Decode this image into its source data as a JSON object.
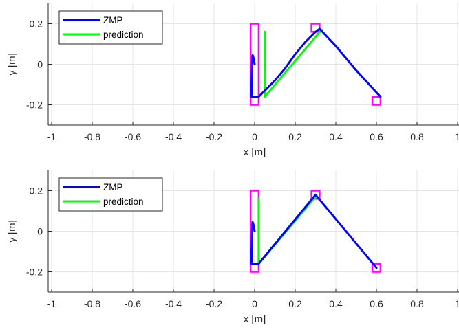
{
  "chart_data": [
    {
      "type": "line",
      "xlabel": "x [m]",
      "ylabel": "y [m]",
      "xlim": [
        -1,
        1
      ],
      "ylim": [
        -0.3,
        0.3
      ],
      "xticks": [
        -1,
        -0.8,
        -0.6,
        -0.4,
        -0.2,
        0,
        0.2,
        0.4,
        0.6,
        0.8,
        1
      ],
      "xtick_labels": [
        "-1",
        "-0.8",
        "-0.6",
        "-0.4",
        "-0.2",
        "0",
        "0.2",
        "0.4",
        "0.6",
        "0.8",
        "1"
      ],
      "yticks": [
        -0.2,
        0,
        0.2
      ],
      "ytick_labels": [
        "-0.2",
        "0",
        "0.2"
      ],
      "grid": true,
      "legend_position": "top-left",
      "series": [
        {
          "name": "ZMP",
          "color": "#0000ff",
          "x": [
            0.0,
            -0.005,
            -0.01,
            -0.012,
            -0.015,
            -0.015,
            0.02,
            0.05,
            0.1,
            0.15,
            0.2,
            0.25,
            0.3,
            0.32,
            0.4,
            0.5,
            0.62
          ],
          "y": [
            0.0,
            0.03,
            0.045,
            0.02,
            -0.1,
            -0.16,
            -0.16,
            -0.13,
            -0.08,
            -0.02,
            0.05,
            0.11,
            0.16,
            0.175,
            0.09,
            -0.03,
            -0.16
          ]
        },
        {
          "name": "prediction",
          "color": "#00ff00",
          "x": [
            0.05,
            0.05,
            0.33
          ],
          "y": [
            0.16,
            -0.16,
            0.17
          ]
        }
      ],
      "markers": {
        "color": "#ff00ff",
        "rects": [
          {
            "x0": -0.02,
            "x1": 0.02,
            "y0": -0.2,
            "y1": 0.2
          },
          {
            "x0": 0.28,
            "x1": 0.32,
            "y0": 0.16,
            "y1": 0.2
          },
          {
            "x0": 0.58,
            "x1": 0.62,
            "y0": -0.2,
            "y1": -0.16
          }
        ]
      }
    },
    {
      "type": "line",
      "xlabel": "x [m]",
      "ylabel": "y [m]",
      "xlim": [
        -1,
        1
      ],
      "ylim": [
        -0.3,
        0.3
      ],
      "xticks": [
        -1,
        -0.8,
        -0.6,
        -0.4,
        -0.2,
        0,
        0.2,
        0.4,
        0.6,
        0.8,
        1
      ],
      "xtick_labels": [
        "-1",
        "-0.8",
        "-0.6",
        "-0.4",
        "-0.2",
        "0",
        "0.2",
        "0.4",
        "0.6",
        "0.8",
        "1"
      ],
      "yticks": [
        -0.2,
        0,
        0.2
      ],
      "ytick_labels": [
        "-0.2",
        "0",
        "0.2"
      ],
      "grid": true,
      "legend_position": "top-left",
      "series": [
        {
          "name": "ZMP",
          "color": "#0000ff",
          "x": [
            0.0,
            -0.005,
            -0.01,
            -0.012,
            -0.015,
            -0.015,
            0.02,
            0.3,
            0.6
          ],
          "y": [
            0.0,
            0.03,
            0.045,
            0.02,
            -0.1,
            -0.16,
            -0.16,
            0.18,
            -0.18
          ]
        },
        {
          "name": "prediction",
          "color": "#00ff00",
          "x": [
            0.02,
            0.02,
            0.3
          ],
          "y": [
            0.16,
            -0.16,
            0.17
          ]
        }
      ],
      "markers": {
        "color": "#ff00ff",
        "rects": [
          {
            "x0": -0.02,
            "x1": 0.02,
            "y0": -0.2,
            "y1": 0.2
          },
          {
            "x0": 0.28,
            "x1": 0.32,
            "y0": 0.16,
            "y1": 0.2
          },
          {
            "x0": 0.58,
            "x1": 0.62,
            "y0": -0.2,
            "y1": -0.16
          }
        ]
      }
    }
  ]
}
